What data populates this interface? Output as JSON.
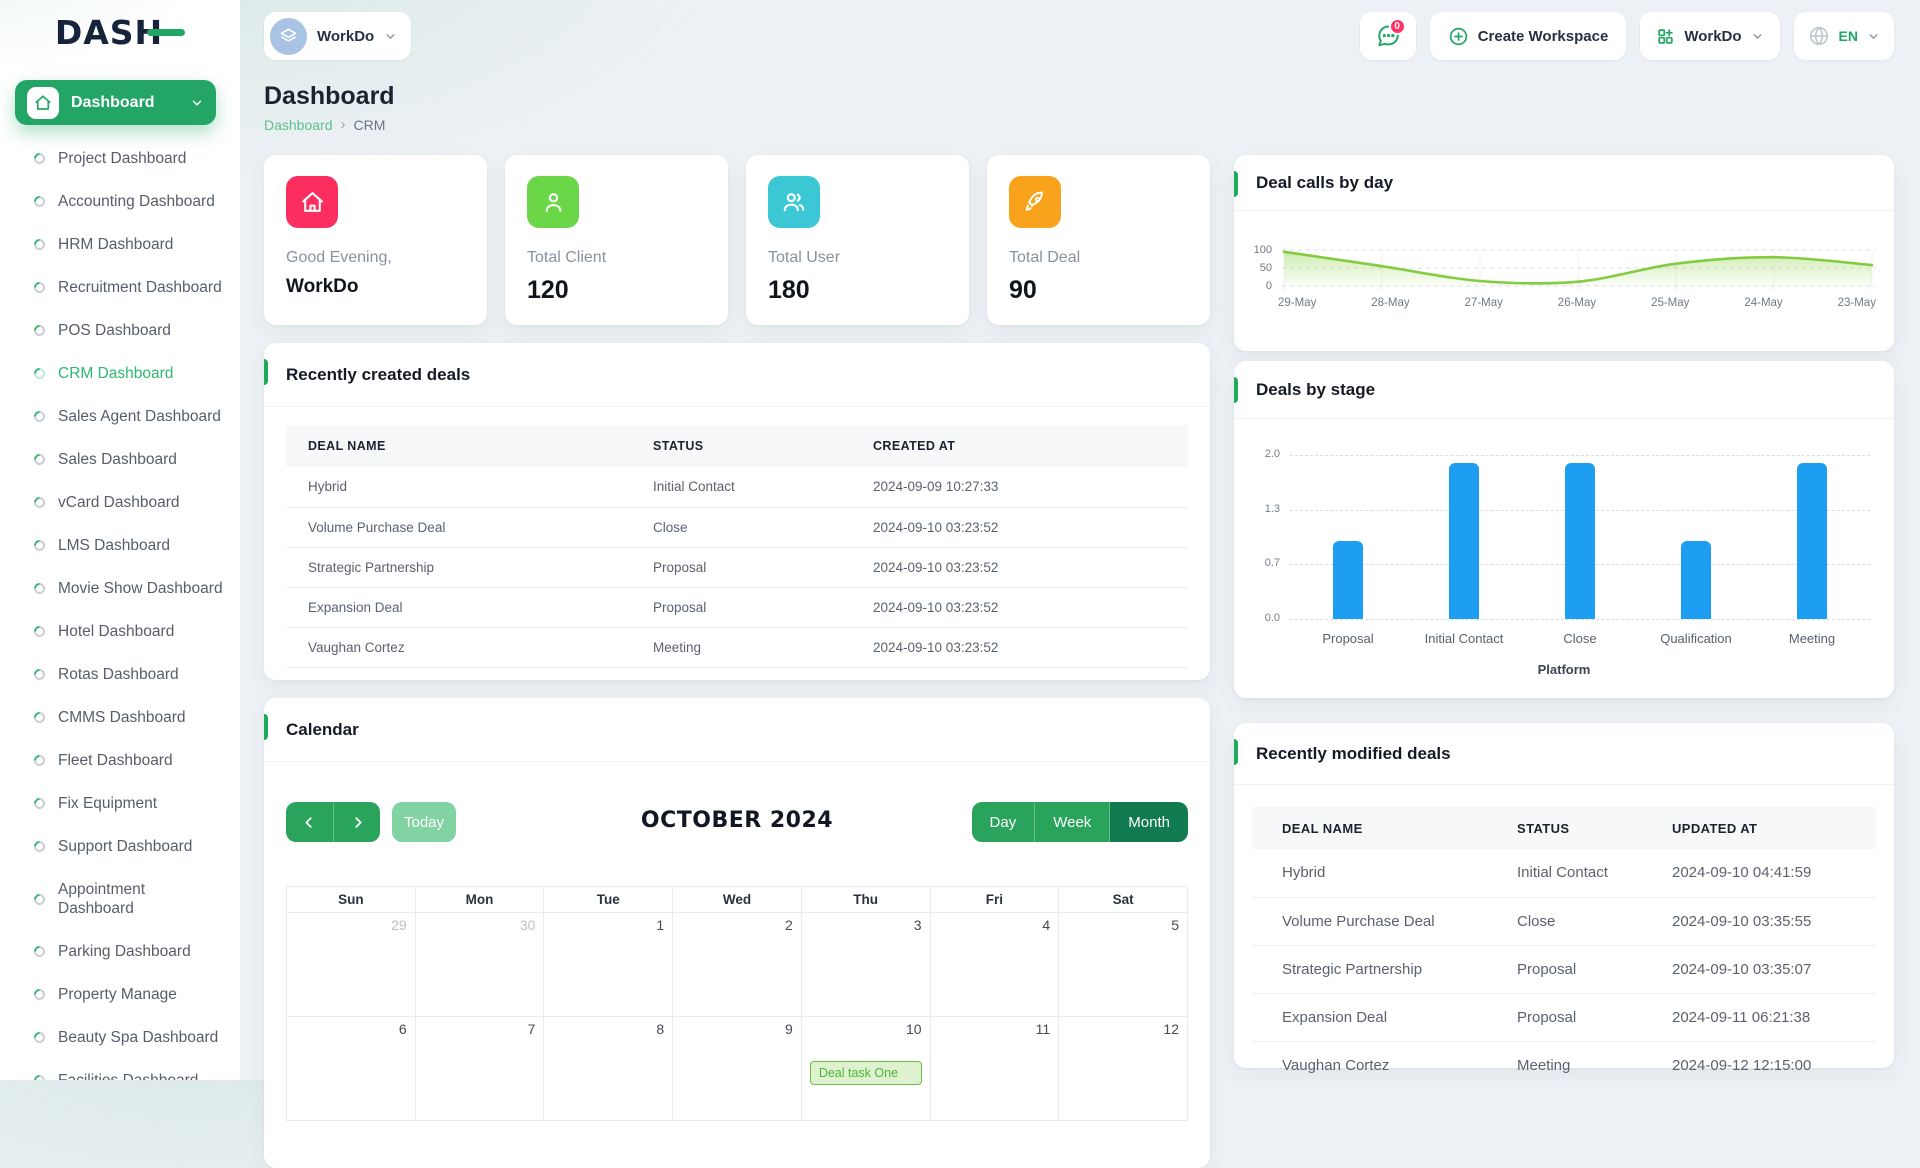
{
  "brand": {
    "logo": "DASH"
  },
  "topbar": {
    "workspace": {
      "name": "WorkDo"
    },
    "notification_badge": "0",
    "create_workspace_label": "Create Workspace",
    "workspace_menu_label": "WorkDo",
    "language": "EN"
  },
  "sidebar": {
    "root_label": "Dashboard",
    "items": [
      {
        "label": "Project Dashboard"
      },
      {
        "label": "Accounting Dashboard"
      },
      {
        "label": "HRM Dashboard"
      },
      {
        "label": "Recruitment Dashboard"
      },
      {
        "label": "POS Dashboard"
      },
      {
        "label": "CRM Dashboard",
        "active": true
      },
      {
        "label": "Sales Agent Dashboard"
      },
      {
        "label": "Sales Dashboard"
      },
      {
        "label": "vCard Dashboard"
      },
      {
        "label": "LMS Dashboard"
      },
      {
        "label": "Movie Show Dashboard"
      },
      {
        "label": "Hotel Dashboard"
      },
      {
        "label": "Rotas Dashboard"
      },
      {
        "label": "CMMS Dashboard"
      },
      {
        "label": "Fleet Dashboard"
      },
      {
        "label": "Fix Equipment"
      },
      {
        "label": "Support Dashboard"
      },
      {
        "label": "Appointment Dashboard"
      },
      {
        "label": "Parking Dashboard"
      },
      {
        "label": "Property Manage"
      },
      {
        "label": "Beauty Spa Dashboard"
      },
      {
        "label": "Facilities Dashboard"
      }
    ]
  },
  "page": {
    "title": "Dashboard",
    "breadcrumb_home": "Dashboard",
    "breadcrumb_current": "CRM"
  },
  "stats": {
    "greeting": {
      "label": "Good Evening,",
      "value": "WorkDo",
      "color": "#fc2d5f"
    },
    "cards": [
      {
        "label": "Total Client",
        "value": "120",
        "color": "#6cd649"
      },
      {
        "label": "Total User",
        "value": "180",
        "color": "#3bc8d4"
      },
      {
        "label": "Total Deal",
        "value": "90",
        "color": "#f9a21b"
      }
    ]
  },
  "recent_created": {
    "title": "Recently created deals",
    "headers": [
      "Deal Name",
      "Status",
      "Created At"
    ],
    "rows": [
      {
        "name": "Hybrid",
        "status": "Initial Contact",
        "time": "2024-09-09 10:27:33"
      },
      {
        "name": "Volume Purchase Deal",
        "status": "Close",
        "time": "2024-09-10 03:23:52"
      },
      {
        "name": "Strategic Partnership",
        "status": "Proposal",
        "time": "2024-09-10 03:23:52"
      },
      {
        "name": "Expansion Deal",
        "status": "Proposal",
        "time": "2024-09-10 03:23:52"
      },
      {
        "name": "Vaughan Cortez",
        "status": "Meeting",
        "time": "2024-09-10 03:23:52"
      }
    ]
  },
  "recent_modified": {
    "title": "Recently modified deals",
    "headers": [
      "Deal Name",
      "Status",
      "Updated At"
    ],
    "rows": [
      {
        "name": "Hybrid",
        "status": "Initial Contact",
        "time": "2024-09-10 04:41:59"
      },
      {
        "name": "Volume Purchase Deal",
        "status": "Close",
        "time": "2024-09-10 03:35:55"
      },
      {
        "name": "Strategic Partnership",
        "status": "Proposal",
        "time": "2024-09-10 03:35:07"
      },
      {
        "name": "Expansion Deal",
        "status": "Proposal",
        "time": "2024-09-11 06:21:38"
      },
      {
        "name": "Vaughan Cortez",
        "status": "Meeting",
        "time": "2024-09-12 12:15:00"
      }
    ]
  },
  "calendar": {
    "title": "Calendar",
    "toolbar": {
      "today_label": "Today",
      "month_title": "OCTOBER 2024",
      "views": [
        "Day",
        "Week",
        "Month"
      ],
      "active_view": "Month"
    },
    "day_headers": [
      "Sun",
      "Mon",
      "Tue",
      "Wed",
      "Thu",
      "Fri",
      "Sat"
    ],
    "weeks": [
      [
        "29",
        "30",
        "1",
        "2",
        "3",
        "4",
        "5"
      ],
      [
        "6",
        "7",
        "8",
        "9",
        "10",
        "11",
        "12"
      ]
    ],
    "event": {
      "label": "Deal task One",
      "day": "10"
    }
  },
  "chart_data": [
    {
      "type": "area",
      "title": "Deal calls by day",
      "x": [
        "29-May",
        "28-May",
        "27-May",
        "26-May",
        "25-May",
        "24-May",
        "23-May"
      ],
      "values": [
        95,
        55,
        14,
        12,
        62,
        80,
        58
      ],
      "ylim": [
        0,
        100
      ],
      "yticks": [
        "100",
        "50",
        "0"
      ],
      "grid": "dashed",
      "line_color": "#84cc3f",
      "fill_color": "#a9dd72"
    },
    {
      "type": "bar",
      "title": "Deals by stage",
      "categories": [
        "Proposal",
        "Initial Contact",
        "Close",
        "Qualification",
        "Meeting"
      ],
      "values": [
        1,
        2,
        2,
        1,
        2
      ],
      "xlabel": "Platform",
      "ylabel": "",
      "ylim": [
        0,
        2
      ],
      "yticks": [
        "2.0",
        "1.3",
        "0.7",
        "0.0"
      ],
      "grid": "dashed",
      "bar_color": "#1e9ef0"
    }
  ]
}
